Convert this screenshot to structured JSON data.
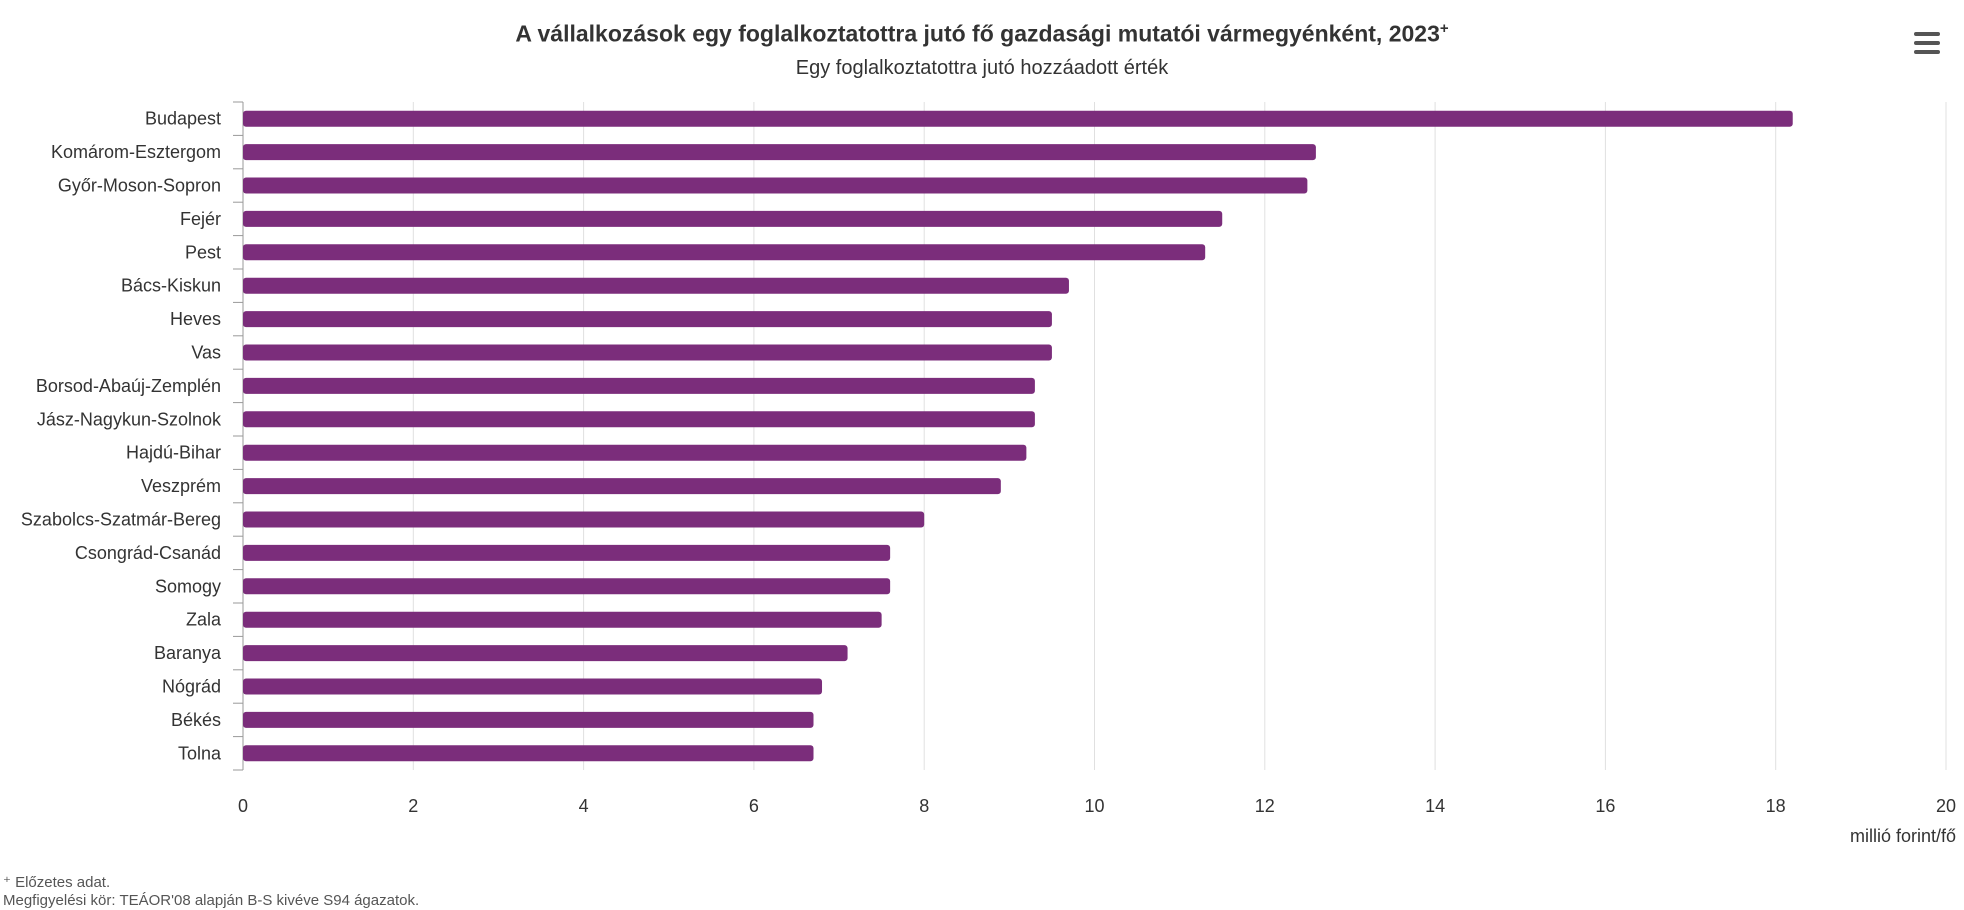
{
  "title": "A vállalkozások egy foglalkoztatottra jutó fő gazdasági mutatói vármegyénként, 2023",
  "title_mark": "+",
  "subtitle": "Egy foglalkoztatottra jutó hozzáadott érték",
  "menu_icon": "hamburger-menu-icon",
  "footnotes": {
    "preliminary": "⁺ Előzetes adat.",
    "scope": "Megfigyelési kör: TEÁOR'08 alapján B-S kivéve S94 ágazatok."
  },
  "colors": {
    "bar": "#7b2d7b",
    "grid": "#e0e0e0",
    "axis": "#999999",
    "text": "#333333"
  },
  "chart_data": {
    "type": "bar",
    "orientation": "horizontal",
    "title": "A vállalkozások egy foglalkoztatottra jutó fő gazdasági mutatói vármegyénként, 2023⁺",
    "subtitle": "Egy foglalkoztatottra jutó hozzáadott érték",
    "xlabel": "millió forint/fő",
    "ylabel": "",
    "xlim": [
      0,
      20
    ],
    "xticks": [
      0,
      2,
      4,
      6,
      8,
      10,
      12,
      14,
      16,
      18,
      20
    ],
    "grid": true,
    "legend": "none",
    "categories": [
      "Budapest",
      "Komárom-Esztergom",
      "Győr-Moson-Sopron",
      "Fejér",
      "Pest",
      "Bács-Kiskun",
      "Heves",
      "Vas",
      "Borsod-Abaúj-Zemplén",
      "Jász-Nagykun-Szolnok",
      "Hajdú-Bihar",
      "Veszprém",
      "Szabolcs-Szatmár-Bereg",
      "Csongrád-Csanád",
      "Somogy",
      "Zala",
      "Baranya",
      "Nógrád",
      "Békés",
      "Tolna"
    ],
    "values": [
      18.2,
      12.6,
      12.5,
      11.5,
      11.3,
      9.7,
      9.5,
      9.5,
      9.3,
      9.3,
      9.2,
      8.9,
      8.0,
      7.6,
      7.6,
      7.5,
      7.1,
      6.8,
      6.7,
      6.7
    ]
  }
}
